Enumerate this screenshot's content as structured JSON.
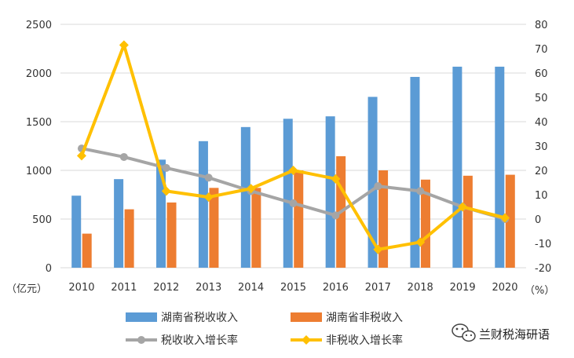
{
  "chart_data": {
    "type": "bar",
    "categories": [
      "2010",
      "2011",
      "2012",
      "2013",
      "2014",
      "2015",
      "2016",
      "2017",
      "2018",
      "2019",
      "2020"
    ],
    "left_axis": {
      "unit": "（亿元）",
      "ylim": [
        0,
        2500
      ],
      "ticks": [
        0,
        500,
        1000,
        1500,
        2000,
        2500
      ]
    },
    "right_axis": {
      "unit": "（%）",
      "ylim": [
        -20,
        80
      ],
      "ticks": [
        -20,
        -10,
        0,
        10,
        20,
        30,
        40,
        50,
        60,
        70,
        80
      ]
    },
    "series": [
      {
        "name": "湖南省税收收入",
        "type": "bar",
        "axis": "left",
        "color": "#5b9bd5",
        "values": [
          740,
          910,
          1110,
          1300,
          1445,
          1530,
          1555,
          1755,
          1960,
          2065,
          2065
        ]
      },
      {
        "name": "湖南省非税收入",
        "type": "bar",
        "axis": "left",
        "color": "#ed7d31",
        "values": [
          350,
          600,
          670,
          820,
          820,
          1000,
          1145,
          1000,
          905,
          945,
          955
        ]
      },
      {
        "name": "税收收入增长率",
        "type": "line",
        "axis": "right",
        "color": "#a5a5a5",
        "marker": "circle",
        "values": [
          29,
          25.5,
          21,
          17,
          11.5,
          6.5,
          1.5,
          13.5,
          11.5,
          5,
          0
        ]
      },
      {
        "name": "非税收入增长率",
        "type": "line",
        "axis": "right",
        "color": "#ffc000",
        "marker": "diamond",
        "values": [
          26,
          71.5,
          11.5,
          9,
          12.5,
          20,
          16.5,
          -12.5,
          -9.5,
          5,
          0.5
        ]
      }
    ],
    "grid": true,
    "legend": "bottom"
  },
  "watermark": {
    "text": "兰财税海研语",
    "icon": "wechat-icon"
  }
}
